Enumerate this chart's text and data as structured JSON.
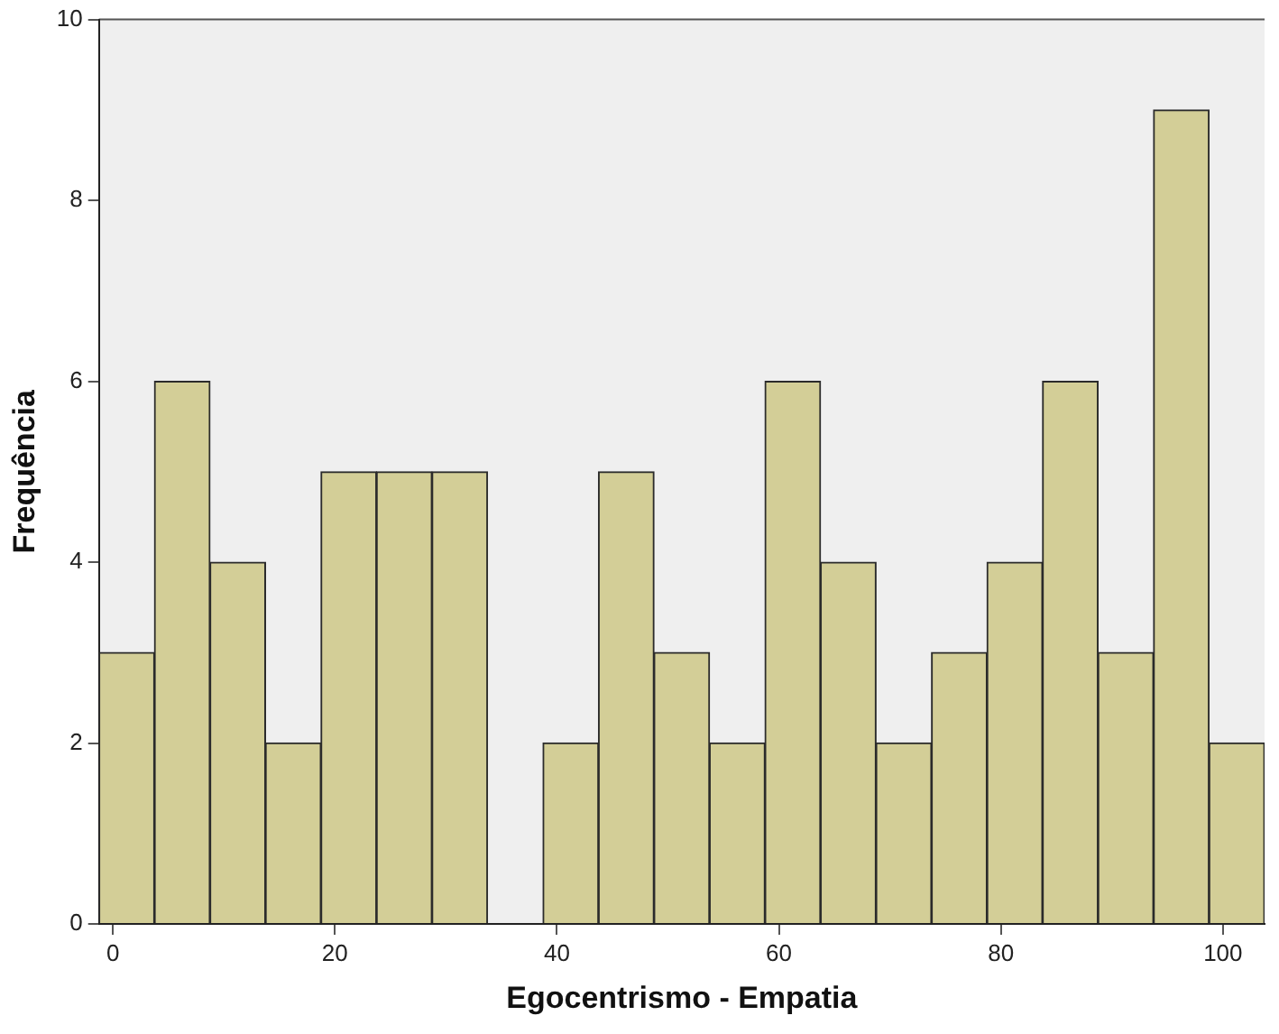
{
  "chart_data": {
    "type": "histogram",
    "xlabel": "Egocentrismo - Empatia",
    "ylabel": "Frequência",
    "bins": [
      -1.25,
      3.75,
      8.75,
      13.75,
      18.75,
      23.75,
      28.75,
      33.75,
      38.75,
      43.75,
      48.75,
      53.75,
      58.75,
      63.75,
      68.75,
      73.75,
      78.75,
      83.75,
      88.75,
      93.75,
      98.75,
      103.75
    ],
    "values": [
      3,
      6,
      4,
      2,
      5,
      5,
      5,
      0,
      2,
      5,
      3,
      2,
      6,
      4,
      2,
      3,
      4,
      6,
      3,
      9,
      2
    ],
    "color": "#d3ce97",
    "xlim": [
      -1.25,
      103.75
    ],
    "xticks": [
      0,
      20,
      40,
      60,
      80,
      100
    ],
    "ylim": [
      0,
      10
    ],
    "yticks": [
      0,
      2,
      4,
      6,
      8,
      10
    ],
    "grid": false,
    "legend": false
  }
}
